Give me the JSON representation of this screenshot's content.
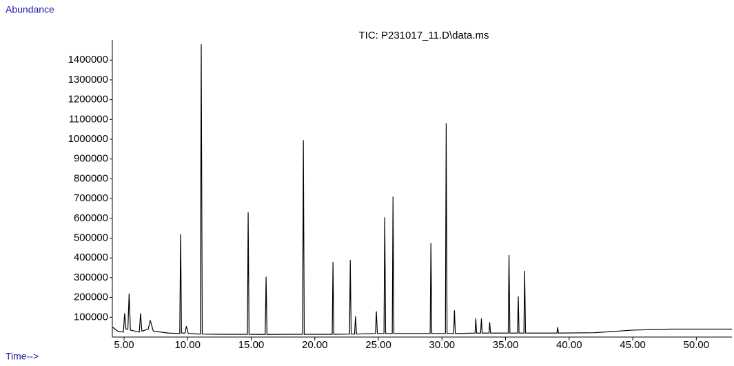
{
  "chart_data": {
    "type": "line",
    "title": "TIC: P231017_11.D\\data.ms",
    "ylabel": "Abundance",
    "xlabel": "Time-->",
    "color": "#000000",
    "x": [
      4.1,
      4.5,
      4.95,
      5.05,
      5.15,
      5.3,
      5.4,
      5.5,
      6.2,
      6.3,
      6.4,
      6.9,
      7.06,
      7.3,
      8.5,
      9.38,
      9.45,
      9.52,
      9.8,
      9.9,
      10.05,
      11.0,
      11.07,
      11.15,
      12.5,
      14.7,
      14.76,
      14.83,
      16.1,
      16.17,
      16.24,
      18.0,
      19.04,
      19.1,
      19.17,
      21.37,
      21.43,
      21.5,
      22.73,
      22.79,
      22.86,
      23.13,
      23.2,
      23.28,
      24.77,
      24.84,
      24.92,
      25.44,
      25.5,
      25.57,
      26.09,
      26.15,
      26.22,
      27.5,
      29.07,
      29.13,
      29.2,
      30.27,
      30.33,
      30.4,
      30.92,
      30.98,
      31.05,
      32.6,
      32.66,
      32.72,
      33.04,
      33.1,
      33.16,
      33.7,
      33.75,
      33.82,
      35.21,
      35.27,
      35.34,
      35.94,
      36.0,
      36.06,
      36.44,
      36.5,
      36.57,
      39.04,
      39.1,
      39.16,
      42.0,
      45.0,
      48.0,
      50.0,
      52.8
    ],
    "values": [
      50000,
      30000,
      25000,
      120000,
      40000,
      40000,
      220000,
      35000,
      25000,
      120000,
      30000,
      40000,
      85000,
      30000,
      20000,
      18000,
      520000,
      20000,
      20000,
      55000,
      18000,
      15000,
      1480000,
      15000,
      14000,
      14000,
      630000,
      14000,
      13000,
      305000,
      13000,
      14000,
      14000,
      995000,
      14000,
      14000,
      380000,
      14000,
      15000,
      390000,
      15000,
      15000,
      105000,
      15000,
      18000,
      130000,
      18000,
      18000,
      605000,
      18000,
      18000,
      710000,
      18000,
      18000,
      18000,
      475000,
      18000,
      18000,
      1080000,
      18000,
      18000,
      135000,
      18000,
      20000,
      95000,
      20000,
      20000,
      95000,
      20000,
      20000,
      75000,
      20000,
      20000,
      415000,
      20000,
      20000,
      205000,
      20000,
      20000,
      335000,
      20000,
      20000,
      50000,
      20000,
      22000,
      35000,
      40000,
      40000,
      40000
    ],
    "xlim": [
      4.08,
      52.8
    ],
    "ylim": [
      0,
      1500000
    ],
    "xticks": [
      {
        "value": 5,
        "label": "5.00"
      },
      {
        "value": 10,
        "label": "10.00"
      },
      {
        "value": 15,
        "label": "15.00"
      },
      {
        "value": 20,
        "label": "20.00"
      },
      {
        "value": 25,
        "label": "25.00"
      },
      {
        "value": 30,
        "label": "30.00"
      },
      {
        "value": 35,
        "label": "35.00"
      },
      {
        "value": 40,
        "label": "40.00"
      },
      {
        "value": 45,
        "label": "45.00"
      },
      {
        "value": 50,
        "label": "50.00"
      }
    ],
    "yticks": [
      100000,
      200000,
      300000,
      400000,
      500000,
      600000,
      700000,
      800000,
      900000,
      1000000,
      1100000,
      1200000,
      1300000,
      1400000
    ]
  }
}
